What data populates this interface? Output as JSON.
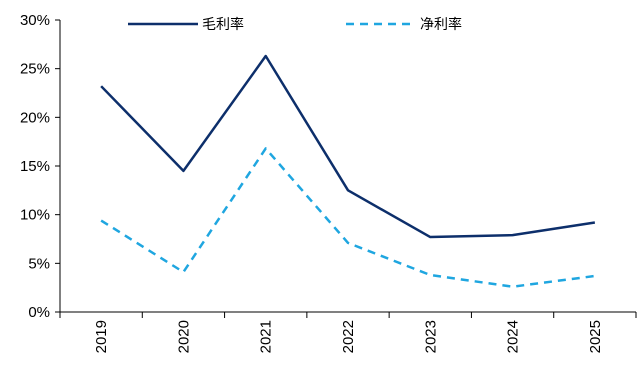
{
  "chart_data": {
    "type": "line",
    "title": "",
    "xlabel": "",
    "ylabel": "",
    "categories": [
      "2019",
      "2020",
      "2021",
      "2022",
      "2023",
      "2024",
      "2025"
    ],
    "ylim": [
      0,
      30
    ],
    "yticks": [
      0,
      5,
      10,
      15,
      20,
      25,
      30
    ],
    "ytick_labels": [
      "0%",
      "5%",
      "10%",
      "15%",
      "20%",
      "25%",
      "30%"
    ],
    "grid": false,
    "legend_position": "top",
    "series": [
      {
        "name": "毛利率",
        "values": [
          23.2,
          14.5,
          26.3,
          12.5,
          7.7,
          7.9,
          9.2
        ],
        "color": "#0d2f6b",
        "style": "solid"
      },
      {
        "name": "净利率",
        "values": [
          9.4,
          4.1,
          16.8,
          7.1,
          3.8,
          2.6,
          3.7
        ],
        "color": "#1fa6e0",
        "style": "dashed"
      }
    ]
  }
}
